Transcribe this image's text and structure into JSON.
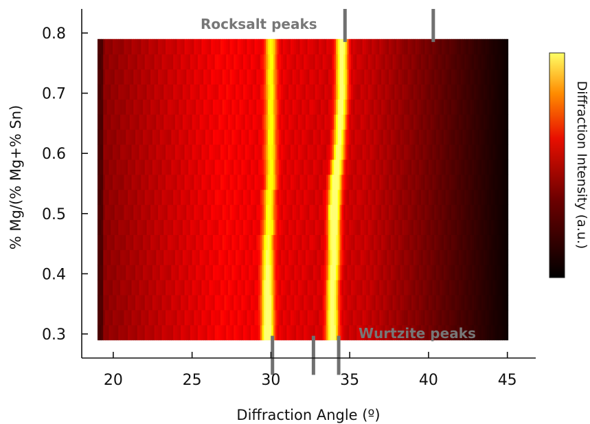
{
  "chart_data": {
    "type": "heatmap",
    "title": "",
    "xlabel": "Diffraction Angle (º)",
    "ylabel": "% Mg/(% Mg+% Sn)",
    "xlim": [
      18,
      46.8
    ],
    "ylim": [
      0.26,
      0.84
    ],
    "x_ticks": [
      {
        "value": 20,
        "label": "20"
      },
      {
        "value": 25,
        "label": "25"
      },
      {
        "value": 30,
        "label": "30"
      },
      {
        "value": 35,
        "label": "35"
      },
      {
        "value": 40,
        "label": "40"
      },
      {
        "value": 45,
        "label": "45"
      }
    ],
    "y_ticks": [
      {
        "value": 0.3,
        "label": "0.3"
      },
      {
        "value": 0.4,
        "label": "0.4"
      },
      {
        "value": 0.5,
        "label": "0.5"
      },
      {
        "value": 0.6,
        "label": "0.6"
      },
      {
        "value": 0.7,
        "label": "0.7"
      },
      {
        "value": 0.8,
        "label": "0.8"
      }
    ],
    "heatmap_x_range": [
      19,
      45
    ],
    "heatmap_y_range": [
      0.29,
      0.79
    ],
    "rows": [
      0.3,
      0.325,
      0.35,
      0.375,
      0.4,
      0.425,
      0.45,
      0.475,
      0.5,
      0.525,
      0.55,
      0.575,
      0.6,
      0.625,
      0.65,
      0.675,
      0.7,
      0.725,
      0.75,
      0.775
    ],
    "peaks": [
      {
        "name": "peak near 29.7",
        "center": [
          29.8,
          29.8,
          29.8,
          29.8,
          29.8,
          29.8,
          29.8,
          29.9,
          29.9,
          29.9,
          30.0,
          30.0,
          30.0,
          30.0,
          30.0,
          30.0,
          30.0,
          30.0,
          30.0,
          30.0
        ],
        "height": [
          0.85,
          0.82,
          0.78,
          0.75,
          0.7,
          0.62,
          0.58,
          0.55,
          0.52,
          0.5,
          0.48,
          0.48,
          0.47,
          0.47,
          0.46,
          0.46,
          0.46,
          0.46,
          0.46,
          0.46
        ],
        "width": 0.35
      },
      {
        "name": "peak near 34",
        "center": [
          33.9,
          33.9,
          33.9,
          33.9,
          33.95,
          34.0,
          34.0,
          34.0,
          34.0,
          34.05,
          34.1,
          34.2,
          34.3,
          34.35,
          34.4,
          34.45,
          34.5,
          34.5,
          34.5,
          34.5
        ],
        "height": [
          0.8,
          0.78,
          0.76,
          0.74,
          0.76,
          0.8,
          0.82,
          0.86,
          0.95,
          0.92,
          0.88,
          0.78,
          0.72,
          0.7,
          0.72,
          0.74,
          0.75,
          0.74,
          0.74,
          0.75
        ],
        "width": 0.35
      }
    ],
    "colorbar": {
      "label": "Diffraction Intensity (a.u.)",
      "colormap": "hot",
      "min_color": "#000000",
      "max_color": "#ffff66"
    },
    "annotations": [
      {
        "text": "Rocksalt peaks",
        "position": "top",
        "marker_x": [
          34.7,
          40.3
        ]
      },
      {
        "text": "Wurtzite peaks",
        "position": "bottom",
        "marker_x": [
          30.1,
          32.7,
          34.3
        ]
      }
    ],
    "marker_color": "#707070"
  }
}
